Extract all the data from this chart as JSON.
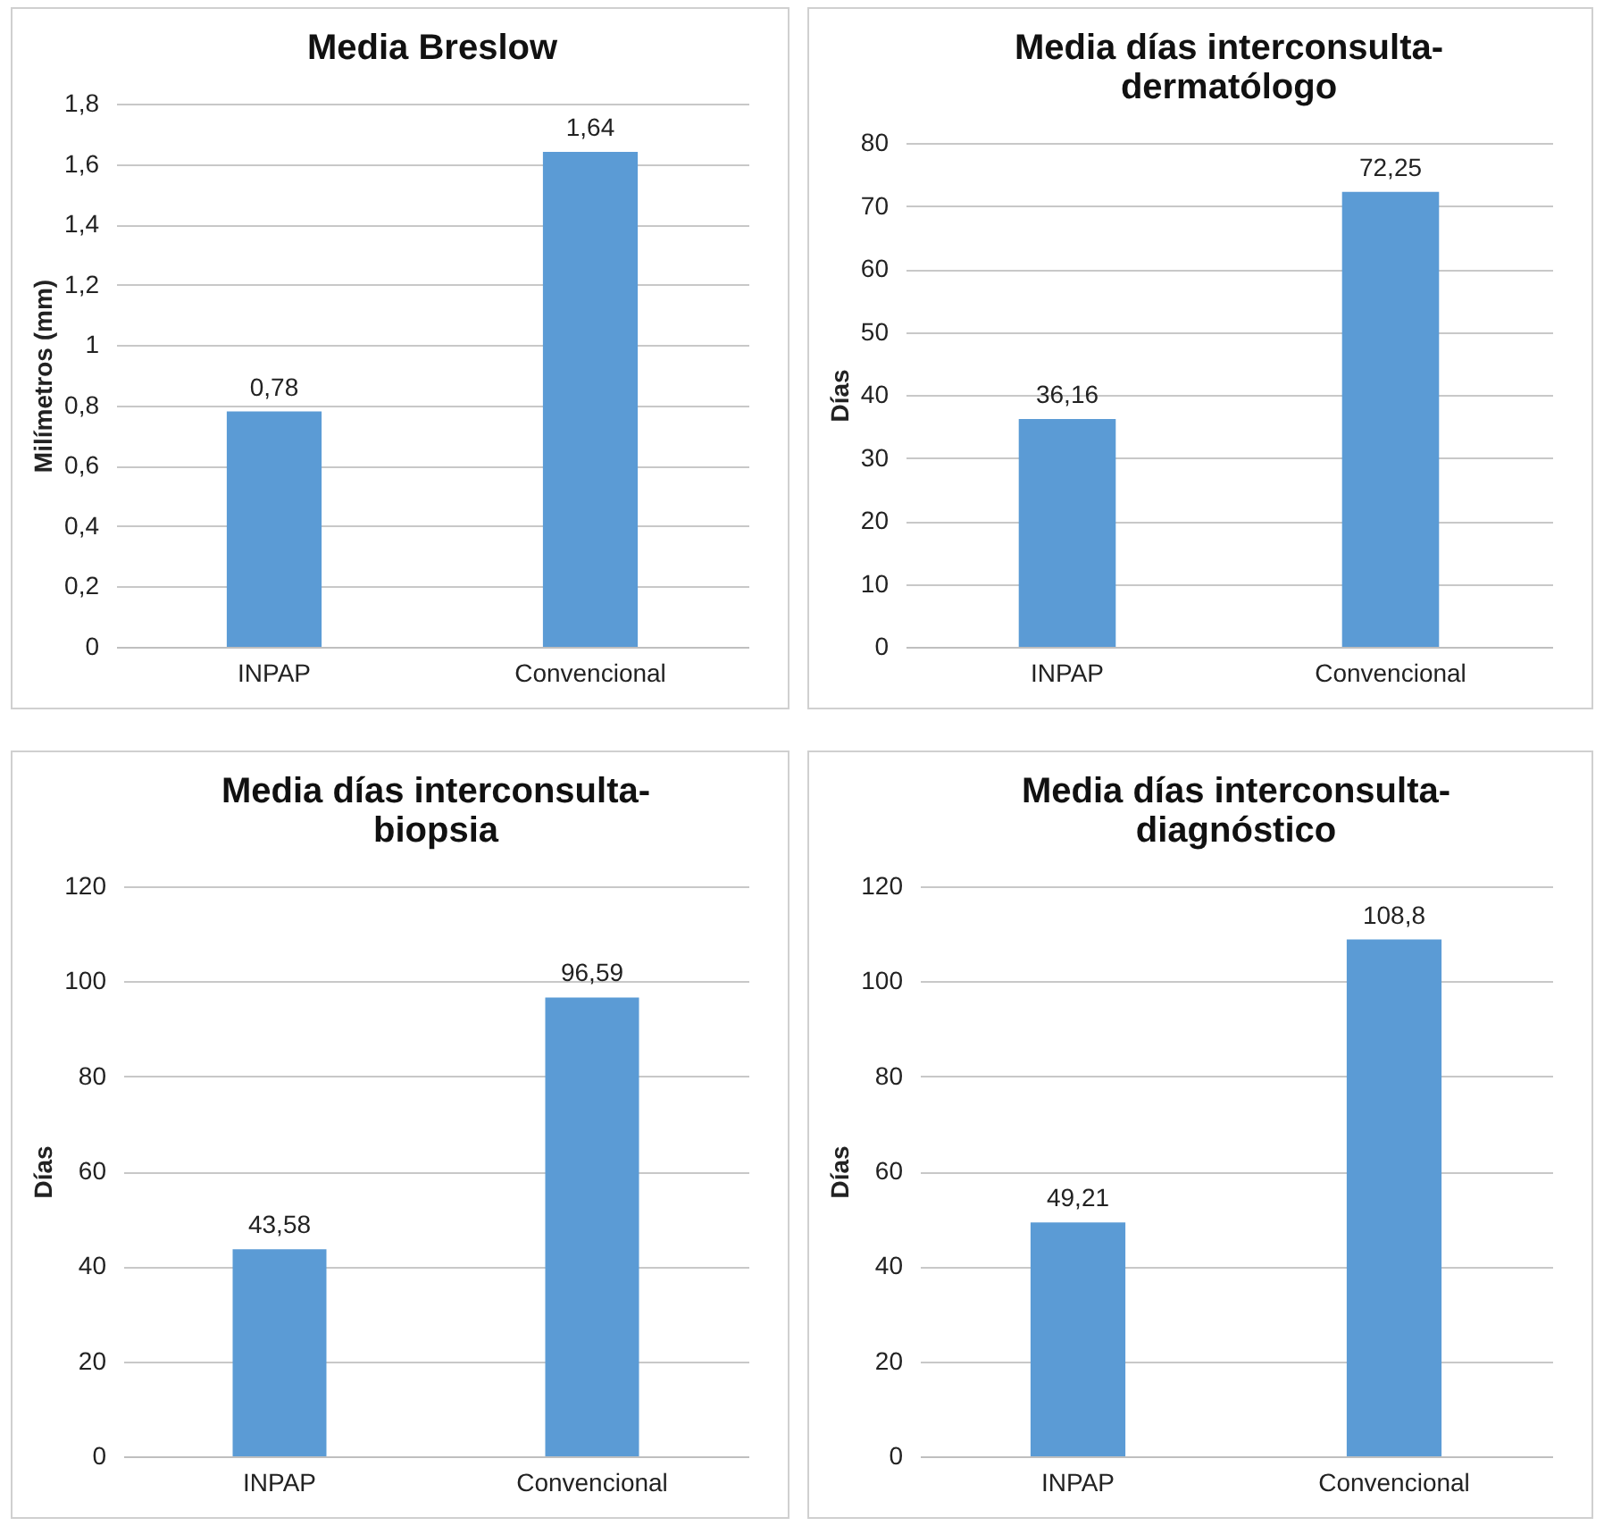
{
  "chart_data": [
    {
      "type": "bar",
      "title": "Media Breslow",
      "ylabel": "Milímetros (mm)",
      "categories": [
        "INPAP",
        "Convencional"
      ],
      "values": [
        0.78,
        1.64
      ],
      "value_labels": [
        "0,78",
        "1,64"
      ],
      "color": "#5b9bd5",
      "ylim": [
        0,
        1.8
      ],
      "yticks": [
        0,
        {
          "value": 0.2,
          "label": "0,2"
        },
        {
          "value": 0.4,
          "label": "0,4"
        },
        {
          "value": 0.6,
          "label": "0,6"
        },
        {
          "value": 0.8,
          "label": "0,8"
        },
        1,
        {
          "value": 1.2,
          "label": "1,2"
        },
        {
          "value": 1.4,
          "label": "1,4"
        },
        {
          "value": 1.6,
          "label": "1,6"
        },
        {
          "value": 1.8,
          "label": "1,8"
        }
      ],
      "grid": "y"
    },
    {
      "type": "bar",
      "title": "Media días interconsulta-dermatólogo",
      "ylabel": "Días",
      "categories": [
        "INPAP",
        "Convencional"
      ],
      "values": [
        36.16,
        72.25
      ],
      "value_labels": [
        "36,16",
        "72,25"
      ],
      "color": "#5b9bd5",
      "ylim": [
        0,
        80
      ],
      "yticks": [
        0,
        10,
        20,
        30,
        40,
        50,
        60,
        70,
        80
      ],
      "grid": "y"
    },
    {
      "type": "bar",
      "title": "Media días interconsulta-biopsia",
      "ylabel": "Días",
      "categories": [
        "INPAP",
        "Convencional"
      ],
      "values": [
        43.58,
        96.59
      ],
      "value_labels": [
        "43,58",
        "96,59"
      ],
      "color": "#5b9bd5",
      "ylim": [
        0,
        120
      ],
      "yticks": [
        0,
        20,
        40,
        60,
        80,
        100,
        120
      ],
      "grid": "y"
    },
    {
      "type": "bar",
      "title": "Media días interconsulta-diagnóstico",
      "ylabel": "Días",
      "categories": [
        "INPAP",
        "Convencional"
      ],
      "values": [
        49.21,
        108.8
      ],
      "value_labels": [
        "49,21",
        "108,8"
      ],
      "color": "#5b9bd5",
      "ylim": [
        0,
        120
      ],
      "yticks": [
        0,
        20,
        40,
        60,
        80,
        100,
        120
      ],
      "grid": "y"
    }
  ]
}
